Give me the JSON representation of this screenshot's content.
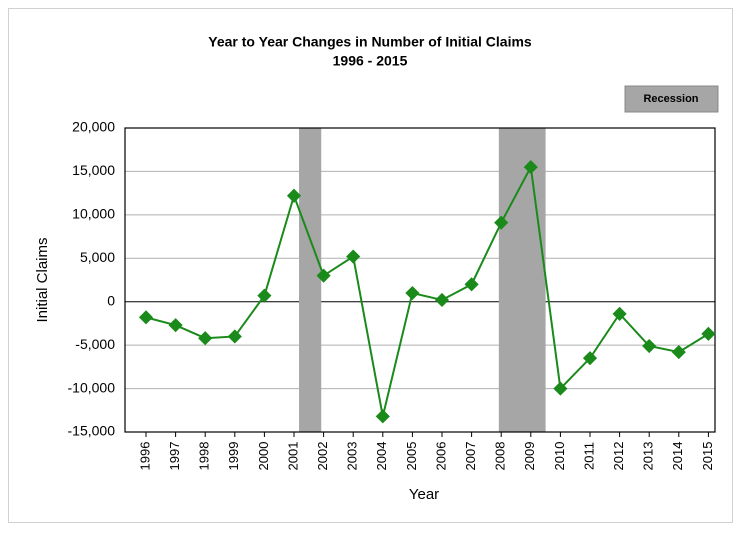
{
  "chart_data": {
    "type": "line",
    "title": "Year to Year Changes in Number of Initial Claims",
    "subtitle": "1996 - 2015",
    "x_label": "Year",
    "y_label": "Initial Claims",
    "categories": [
      "1996",
      "1997",
      "1998",
      "1999",
      "2000",
      "2001",
      "2002",
      "2003",
      "2004",
      "2005",
      "2006",
      "2007",
      "2008",
      "2009",
      "2010",
      "2011",
      "2012",
      "2013",
      "2014",
      "2015"
    ],
    "series": [
      {
        "name": "Initial Claims",
        "color": "#1a8a1a",
        "values": [
          -1800,
          -2700,
          -4200,
          -4000,
          700,
          12200,
          3000,
          5200,
          -13200,
          1000,
          200,
          2000,
          9100,
          15500,
          -10000,
          -6500,
          -1400,
          -5100,
          -5800,
          -3700
        ]
      }
    ],
    "recession_legend": "Recession",
    "recession_color": "#a6a6a6",
    "recessions": [
      [
        2001.17,
        2001.92
      ],
      [
        2007.92,
        2009.5
      ]
    ],
    "ylim": [
      -15000,
      20000
    ],
    "yticks": [
      {
        "value": -15000,
        "label": "-15,000"
      },
      {
        "value": -10000,
        "label": "-10,000"
      },
      {
        "value": -5000,
        "label": "-5,000"
      },
      0,
      {
        "value": 5000,
        "label": "5,000"
      },
      {
        "value": 10000,
        "label": "10,000"
      },
      {
        "value": 15000,
        "label": "15,000"
      },
      {
        "value": 20000,
        "label": "20,000"
      }
    ],
    "grid": true
  }
}
